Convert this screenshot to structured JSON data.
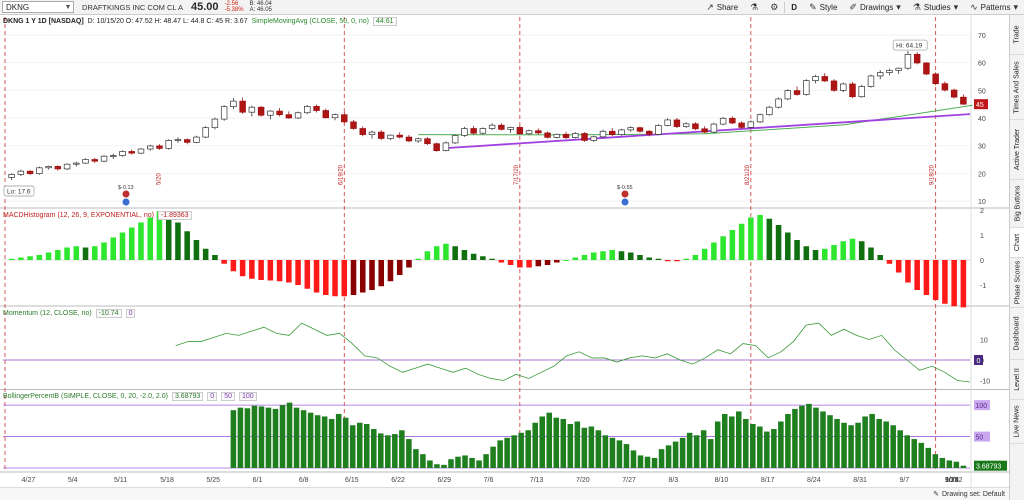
{
  "header": {
    "symbol": "DKNG",
    "company": "DRAFTKINGS INC COM CL A",
    "last": "45.00",
    "change": "-2.56",
    "change_pct": "-5.38%",
    "bid": "B: 46.04",
    "ask": "A: 46.05"
  },
  "toolbar": {
    "share": "Share",
    "d": "D",
    "style": "Style",
    "drawings": "Drawings",
    "studies": "Studies",
    "patterns": "Patterns"
  },
  "sidebar": {
    "tabs": [
      "Trade",
      "Times And Sales",
      "Active Trader",
      "Big Buttons",
      "Chart",
      "Phase Scores",
      "Dashboard",
      "Level II",
      "Live News"
    ]
  },
  "price_panel": {
    "title": "DKNG 1 Y 1D [NASDAQ]",
    "ohlc": "D: 10/15/20  O: 47.52  H: 48.47  L: 44.8  C: 45  R: 3.67",
    "study": "SimpleMovingAvg (CLOSE, 50, 0, no)",
    "study_value": "44.61",
    "hi_label": "Hi: 64.19",
    "lo_label": "Lo: 17.6",
    "price_tag": "45",
    "y_ticks": [
      "70",
      "60",
      "50",
      "40",
      "30",
      "20",
      "10"
    ],
    "vline_labels": [
      "6/19/20",
      "7/17/20",
      "8/21/20",
      "9/18/20"
    ],
    "event_labels": [
      "$-0.13",
      "$-0.55"
    ]
  },
  "macd_panel": {
    "label": "MACDHistogram (12, 26, 9, EXPONENTIAL, no)",
    "value": "-1.89363",
    "y_ticks": [
      "2",
      "1",
      "0",
      "-1"
    ]
  },
  "momentum_panel": {
    "label": "Momentum (12, CLOSE, no)",
    "value": "-10.74",
    "zero_chip": "0",
    "y_ticks": [
      "10",
      "0",
      "-10"
    ],
    "zero_tag": "0"
  },
  "bollinger_panel": {
    "label": "BollingerPercentB (SIMPLE, CLOSE, 0, 20, -2.0, 2.0)",
    "value": "3.68793",
    "chips": [
      "0",
      "50",
      "100"
    ],
    "tags": [
      "100",
      "50",
      "3.68793"
    ]
  },
  "x_axis": {
    "labels": [
      "4/27",
      "5/4",
      "5/11",
      "5/18",
      "5/25",
      "6/1",
      "6/8",
      "6/15",
      "6/22",
      "6/29",
      "7/6",
      "7/13",
      "7/20",
      "7/27",
      "8/3",
      "8/10",
      "8/17",
      "8/24",
      "8/31",
      "9/7",
      "9/14",
      "9/21",
      "9/28",
      "10/5",
      "10/12"
    ]
  },
  "footer": {
    "drawing_set": "Drawing set: Default"
  },
  "colors": {
    "up": "#1a9a1a",
    "down": "#d01010",
    "macd_pos_bright": "#2ee62e",
    "macd_pos_dark": "#107010",
    "macd_neg_bright": "#ff1a1a",
    "macd_neg_dark": "#8a0000",
    "sma": "#4caf50",
    "trendline": "#a040e0",
    "vline": "#d03030"
  },
  "candles": [
    [
      18.5,
      20.0,
      17.6,
      19.6
    ],
    [
      19.6,
      21.3,
      19.0,
      20.8
    ],
    [
      20.8,
      21.0,
      19.4,
      19.9
    ],
    [
      19.9,
      22.4,
      19.5,
      22.0
    ],
    [
      22.0,
      22.8,
      21.4,
      22.5
    ],
    [
      22.5,
      22.9,
      21.0,
      21.6
    ],
    [
      21.6,
      23.6,
      21.2,
      23.3
    ],
    [
      23.3,
      24.2,
      22.5,
      23.7
    ],
    [
      23.7,
      25.4,
      23.4,
      25.0
    ],
    [
      25.0,
      25.6,
      23.8,
      24.4
    ],
    [
      24.4,
      26.6,
      24.0,
      26.2
    ],
    [
      26.2,
      27.0,
      25.2,
      26.4
    ],
    [
      26.4,
      28.3,
      26.0,
      27.9
    ],
    [
      27.9,
      28.6,
      26.8,
      27.3
    ],
    [
      27.3,
      29.1,
      27.0,
      28.8
    ],
    [
      28.8,
      30.3,
      28.2,
      29.9
    ],
    [
      29.9,
      30.5,
      28.5,
      29.0
    ],
    [
      29.0,
      32.3,
      28.6,
      31.9
    ],
    [
      31.9,
      33.0,
      31.0,
      32.2
    ],
    [
      32.2,
      32.6,
      30.5,
      31.2
    ],
    [
      31.2,
      33.6,
      30.9,
      33.1
    ],
    [
      33.1,
      37.0,
      32.7,
      36.5
    ],
    [
      36.5,
      40.2,
      35.9,
      39.6
    ],
    [
      39.6,
      44.6,
      39.0,
      44.1
    ],
    [
      44.1,
      47.2,
      43.2,
      46.1
    ],
    [
      46.1,
      47.4,
      41.5,
      42.1
    ],
    [
      42.1,
      44.5,
      40.6,
      43.9
    ],
    [
      43.9,
      44.3,
      40.5,
      41.0
    ],
    [
      41.0,
      42.8,
      39.5,
      42.5
    ],
    [
      42.5,
      43.6,
      40.6,
      41.2
    ],
    [
      41.2,
      42.4,
      39.7,
      40.0
    ],
    [
      40.0,
      42.3,
      39.6,
      41.9
    ],
    [
      41.9,
      44.7,
      41.4,
      44.2
    ],
    [
      44.2,
      44.9,
      42.0,
      42.7
    ],
    [
      42.7,
      43.4,
      39.8,
      40.1
    ],
    [
      40.1,
      41.6,
      39.2,
      41.2
    ],
    [
      41.2,
      42.2,
      38.3,
      38.6
    ],
    [
      38.6,
      39.3,
      35.8,
      36.2
    ],
    [
      36.2,
      37.0,
      33.4,
      34.0
    ],
    [
      34.0,
      35.5,
      32.6,
      34.9
    ],
    [
      34.9,
      35.6,
      32.1,
      32.6
    ],
    [
      32.6,
      34.1,
      32.0,
      33.8
    ],
    [
      33.8,
      34.9,
      32.6,
      33.1
    ],
    [
      33.1,
      33.9,
      31.3,
      31.7
    ],
    [
      31.7,
      32.9,
      31.0,
      32.5
    ],
    [
      32.5,
      33.1,
      30.3,
      30.7
    ],
    [
      30.7,
      31.1,
      27.8,
      28.2
    ],
    [
      28.2,
      31.5,
      27.9,
      31.0
    ],
    [
      31.0,
      34.1,
      30.6,
      33.7
    ],
    [
      33.7,
      36.8,
      33.2,
      36.2
    ],
    [
      36.2,
      37.2,
      34.0,
      34.5
    ],
    [
      34.5,
      36.6,
      34.1,
      36.2
    ],
    [
      36.2,
      38.1,
      35.6,
      37.4
    ],
    [
      37.4,
      38.1,
      35.5,
      35.9
    ],
    [
      35.9,
      36.9,
      34.6,
      36.6
    ],
    [
      36.6,
      37.3,
      33.9,
      34.3
    ],
    [
      34.3,
      35.8,
      33.8,
      35.4
    ],
    [
      35.4,
      36.2,
      34.0,
      34.6
    ],
    [
      34.6,
      35.1,
      32.6,
      33.0
    ],
    [
      33.0,
      34.4,
      32.6,
      34.1
    ],
    [
      34.1,
      35.0,
      32.4,
      32.9
    ],
    [
      32.9,
      34.9,
      32.6,
      34.4
    ],
    [
      34.4,
      34.9,
      31.4,
      31.9
    ],
    [
      31.9,
      33.6,
      31.4,
      33.2
    ],
    [
      33.2,
      35.8,
      32.8,
      35.2
    ],
    [
      35.2,
      36.3,
      33.5,
      34.0
    ],
    [
      34.0,
      36.1,
      33.6,
      35.7
    ],
    [
      35.7,
      37.0,
      35.0,
      36.5
    ],
    [
      36.5,
      36.9,
      34.7,
      35.2
    ],
    [
      35.2,
      35.7,
      33.4,
      34.1
    ],
    [
      34.1,
      37.8,
      33.8,
      37.3
    ],
    [
      37.3,
      39.9,
      37.0,
      39.3
    ],
    [
      39.3,
      40.0,
      36.4,
      36.9
    ],
    [
      36.9,
      38.4,
      36.4,
      37.9
    ],
    [
      37.9,
      38.4,
      35.6,
      36.1
    ],
    [
      36.1,
      37.0,
      34.5,
      34.9
    ],
    [
      34.9,
      38.3,
      34.5,
      37.8
    ],
    [
      37.8,
      40.4,
      37.4,
      39.9
    ],
    [
      39.9,
      40.6,
      37.8,
      38.2
    ],
    [
      38.2,
      38.8,
      36.1,
      36.6
    ],
    [
      36.6,
      39.1,
      36.2,
      38.6
    ],
    [
      38.6,
      41.6,
      38.2,
      41.2
    ],
    [
      41.2,
      44.4,
      40.8,
      43.9
    ],
    [
      43.9,
      47.4,
      43.5,
      46.9
    ],
    [
      46.9,
      50.4,
      46.5,
      49.9
    ],
    [
      49.9,
      51.4,
      48.0,
      48.5
    ],
    [
      48.5,
      54.0,
      48.1,
      53.5
    ],
    [
      53.5,
      55.6,
      52.5,
      55.0
    ],
    [
      55.0,
      56.2,
      53.0,
      53.4
    ],
    [
      53.4,
      54.0,
      49.5,
      50.0
    ],
    [
      50.0,
      52.8,
      49.4,
      52.3
    ],
    [
      52.3,
      53.0,
      47.2,
      47.7
    ],
    [
      47.7,
      52.0,
      47.3,
      51.4
    ],
    [
      51.4,
      55.7,
      51.0,
      55.2
    ],
    [
      55.2,
      57.3,
      54.0,
      56.4
    ],
    [
      56.4,
      57.8,
      55.4,
      57.2
    ],
    [
      57.2,
      58.3,
      55.9,
      58.0
    ],
    [
      58.0,
      64.19,
      57.5,
      63.0
    ],
    [
      63.0,
      63.8,
      59.4,
      59.9
    ],
    [
      59.9,
      60.2,
      55.5,
      55.9
    ],
    [
      55.9,
      56.5,
      51.8,
      52.4
    ],
    [
      52.4,
      53.2,
      49.6,
      50.1
    ],
    [
      50.1,
      50.6,
      47.1,
      47.56
    ],
    [
      47.52,
      48.47,
      44.8,
      45.0
    ]
  ],
  "sma_line": [
    [
      44,
      34.0
    ],
    [
      60,
      33.9
    ],
    [
      75,
      34.3
    ],
    [
      90,
      37.5
    ],
    [
      104,
      44.61
    ]
  ],
  "trendline": [
    [
      47,
      29.1
    ],
    [
      104,
      41.4
    ]
  ],
  "macd_histogram": [
    0.05,
    0.1,
    0.15,
    0.2,
    0.3,
    0.4,
    0.5,
    0.55,
    0.5,
    0.55,
    0.7,
    0.9,
    1.1,
    1.3,
    1.5,
    1.7,
    1.95,
    1.85,
    1.5,
    1.15,
    0.8,
    0.45,
    0.2,
    -0.15,
    -0.45,
    -0.65,
    -0.75,
    -0.8,
    -0.82,
    -0.85,
    -0.9,
    -1.0,
    -1.15,
    -1.3,
    -1.4,
    -1.45,
    -1.45,
    -1.4,
    -1.3,
    -1.2,
    -1.05,
    -0.85,
    -0.6,
    -0.3,
    0.05,
    0.35,
    0.55,
    0.65,
    0.55,
    0.4,
    0.25,
    0.15,
    0.05,
    -0.1,
    -0.2,
    -0.3,
    -0.3,
    -0.25,
    -0.2,
    -0.1,
    0.0,
    0.1,
    0.2,
    0.3,
    0.35,
    0.4,
    0.35,
    0.3,
    0.2,
    0.1,
    0.05,
    -0.05,
    -0.05,
    0.05,
    0.2,
    0.45,
    0.7,
    0.95,
    1.2,
    1.45,
    1.7,
    1.8,
    1.65,
    1.4,
    1.1,
    0.8,
    0.55,
    0.4,
    0.45,
    0.6,
    0.75,
    0.85,
    0.75,
    0.5,
    0.2,
    -0.15,
    -0.5,
    -0.9,
    -1.2,
    -1.4,
    -1.6,
    -1.75,
    -1.85,
    -1.89363
  ],
  "momentum_series": [
    [
      24,
      7
    ],
    [
      28,
      9
    ],
    [
      32,
      9
    ],
    [
      36,
      11
    ],
    [
      40,
      13
    ],
    [
      44,
      12
    ],
    [
      48,
      14
    ],
    [
      52,
      16
    ],
    [
      56,
      13
    ],
    [
      60,
      12
    ],
    [
      64,
      18
    ],
    [
      68,
      15
    ],
    [
      72,
      12
    ],
    [
      76,
      13
    ],
    [
      80,
      8
    ],
    [
      84,
      2
    ],
    [
      88,
      1
    ],
    [
      92,
      -3
    ],
    [
      96,
      -6
    ],
    [
      100,
      -4
    ],
    [
      104,
      -2
    ],
    [
      108,
      -4
    ],
    [
      112,
      -6
    ],
    [
      116,
      -4
    ],
    [
      120,
      -7
    ],
    [
      124,
      -9
    ],
    [
      128,
      -10
    ],
    [
      132,
      -7
    ],
    [
      136,
      -9
    ],
    [
      140,
      -6
    ],
    [
      144,
      -3
    ],
    [
      148,
      2
    ],
    [
      152,
      4
    ],
    [
      156,
      1
    ],
    [
      160,
      1
    ],
    [
      164,
      -1
    ],
    [
      168,
      1
    ],
    [
      172,
      2
    ],
    [
      176,
      1
    ],
    [
      180,
      3
    ],
    [
      184,
      0
    ],
    [
      188,
      -2
    ],
    [
      192,
      1
    ],
    [
      196,
      5
    ],
    [
      200,
      3
    ],
    [
      204,
      8
    ],
    [
      208,
      7
    ],
    [
      212,
      1
    ],
    [
      216,
      4
    ],
    [
      220,
      9
    ],
    [
      224,
      17
    ],
    [
      228,
      18
    ],
    [
      232,
      12
    ],
    [
      236,
      15
    ],
    [
      240,
      12
    ],
    [
      244,
      10
    ],
    [
      248,
      12
    ],
    [
      252,
      5
    ],
    [
      256,
      0
    ],
    [
      260,
      -5
    ],
    [
      264,
      -3
    ],
    [
      268,
      -6
    ],
    [
      272,
      -10
    ],
    [
      276,
      -10.74
    ]
  ],
  "bollinger_bars": [
    92,
    96,
    95,
    99,
    98,
    96,
    94,
    100,
    104,
    96,
    92,
    88,
    84,
    82,
    78,
    86,
    80,
    68,
    72,
    70,
    62,
    55,
    52,
    54,
    60,
    46,
    30,
    22,
    12,
    6,
    5,
    14,
    18,
    20,
    16,
    12,
    22,
    34,
    44,
    48,
    52,
    56,
    60,
    72,
    82,
    88,
    80,
    78,
    70,
    74,
    64,
    66,
    60,
    52,
    48,
    44,
    38,
    28,
    20,
    18,
    16,
    30,
    36,
    42,
    48,
    56,
    52,
    60,
    46,
    74,
    86,
    82,
    90,
    78,
    70,
    66,
    58,
    62,
    74,
    86,
    94,
    99,
    102,
    96,
    90,
    84,
    78,
    72,
    68,
    72,
    82,
    86,
    78,
    74,
    68,
    60,
    52,
    46,
    40,
    32,
    22,
    16,
    12,
    10,
    3.68793
  ]
}
